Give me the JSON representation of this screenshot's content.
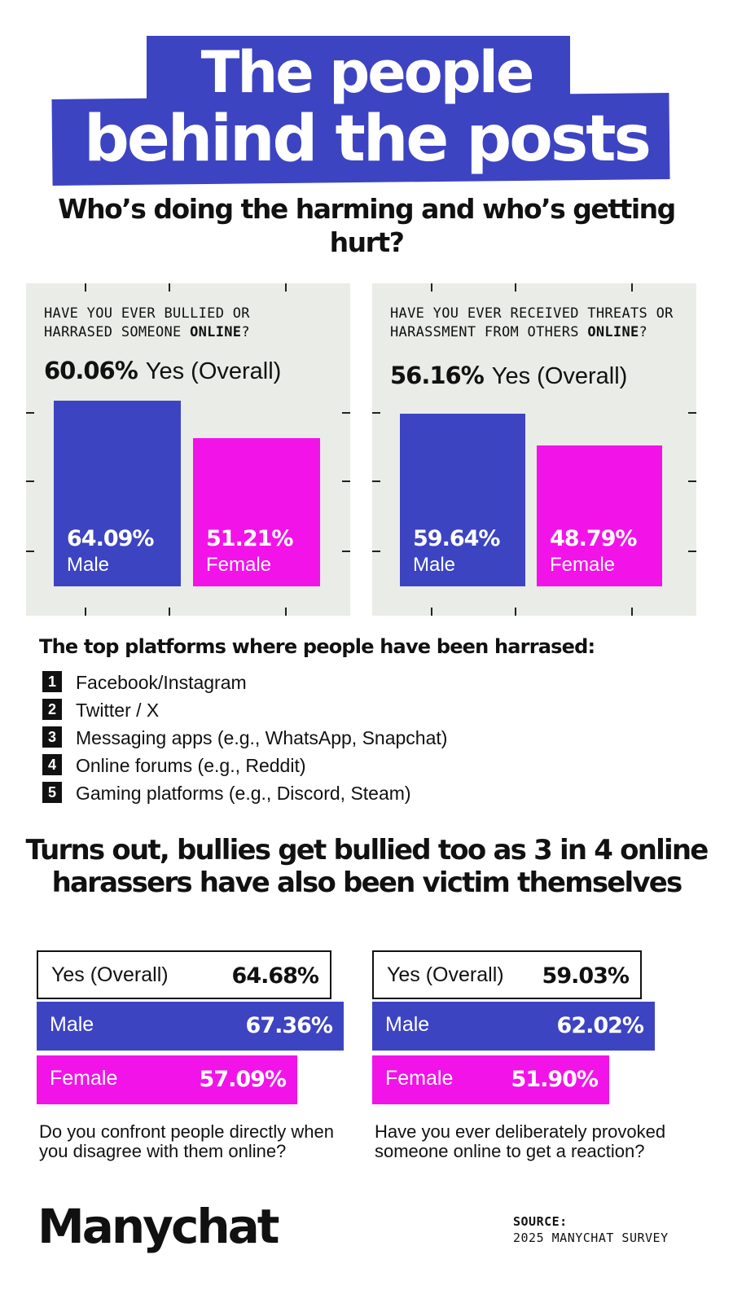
{
  "title": {
    "line1": "The people",
    "line2": "behind the posts"
  },
  "subtitle": "Who’s doing the harming and who’s getting hurt?",
  "colors": {
    "male": "#3d44c2",
    "female": "#f213e8",
    "panel": "#eaece7",
    "title_bg": "#3d44c2"
  },
  "chart_data": [
    {
      "type": "bar",
      "question_pre": "HAVE YOU EVER BULLIED OR HARRASED SOMEONE ",
      "question_bold": "ONLINE",
      "question_post": "?",
      "overall_value": "60.06%",
      "overall_label": "Yes (Overall)",
      "categories": [
        "Male",
        "Female"
      ],
      "values": [
        64.09,
        51.21
      ],
      "value_labels": [
        "64.09%",
        "51.21%"
      ]
    },
    {
      "type": "bar",
      "question_pre": "HAVE YOU EVER RECEIVED THREATS OR HARASSMENT FROM OTHERS ",
      "question_bold": "ONLINE",
      "question_post": "?",
      "overall_value": "56.16%",
      "overall_label": "Yes (Overall)",
      "categories": [
        "Male",
        "Female"
      ],
      "values": [
        59.64,
        48.79
      ],
      "value_labels": [
        "59.64%",
        "48.79%"
      ]
    },
    {
      "type": "bar",
      "orientation": "horizontal",
      "question": "Do you confront people directly when you disagree with them online?",
      "categories": [
        "Yes (Overall)",
        "Male",
        "Female"
      ],
      "values": [
        64.68,
        67.36,
        57.09
      ],
      "value_labels": [
        "64.68%",
        "67.36%",
        "57.09%"
      ]
    },
    {
      "type": "bar",
      "orientation": "horizontal",
      "question": "Have you ever deliberately provoked someone online to get a reaction?",
      "categories": [
        "Yes (Overall)",
        "Male",
        "Female"
      ],
      "values": [
        59.03,
        62.02,
        51.9
      ],
      "value_labels": [
        "59.03%",
        "62.02%",
        "51.90%"
      ]
    }
  ],
  "platforms": {
    "title": "The top platforms where people have been harrased:",
    "items": [
      {
        "num": "1",
        "label": "Facebook/Instagram"
      },
      {
        "num": "2",
        "label": "Twitter / X"
      },
      {
        "num": "3",
        "label": "Messaging apps (e.g., WhatsApp, Snapchat)"
      },
      {
        "num": "4",
        "label": "Online forums (e.g., Reddit)"
      },
      {
        "num": "5",
        "label": "Gaming platforms (e.g., Discord, Steam)"
      }
    ]
  },
  "headline2": "Turns out, bullies get bullied too as 3 in 4 online harassers have also been victim themselves",
  "logo": "Manychat",
  "source": {
    "label": "SOURCE:",
    "text": "2025 MANYCHAT SURVEY"
  }
}
